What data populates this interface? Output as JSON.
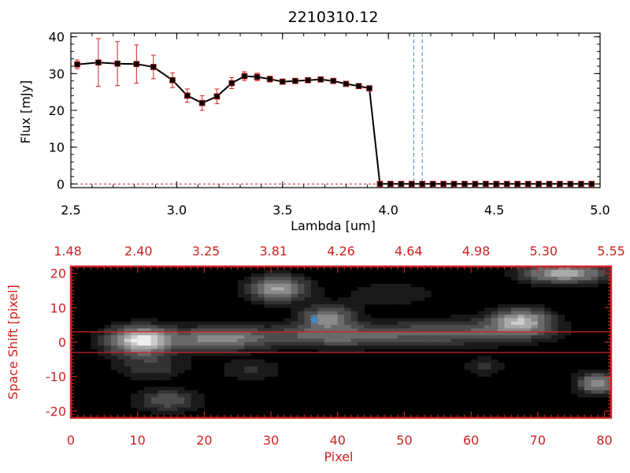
{
  "chart_data": [
    {
      "type": "line",
      "title": "2210310.12",
      "xlabel": "Lambda [um]",
      "ylabel": "Flux [mJy]",
      "xlim": [
        2.5,
        5.0
      ],
      "ylim": [
        -1,
        41
      ],
      "x_ticks": [
        "2.5",
        "3.0",
        "3.5",
        "4.0",
        "4.5",
        "5.0"
      ],
      "y_ticks": [
        "0",
        "10",
        "20",
        "30",
        "40"
      ],
      "grid": false,
      "colors": {
        "line": "#000000",
        "error_bar": "#cc2222",
        "vline": "#3a8fd0"
      },
      "vlines": [
        4.12,
        4.16
      ],
      "series": [
        {
          "x": [
            2.53,
            2.63,
            2.72,
            2.81,
            2.89,
            2.98,
            3.05,
            3.12,
            3.19,
            3.26,
            3.32,
            3.38,
            3.44,
            3.5,
            3.56,
            3.62,
            3.68,
            3.74,
            3.8,
            3.86,
            3.91,
            3.96,
            4.01,
            4.06,
            4.11,
            4.16,
            4.21,
            4.26,
            4.31,
            4.36,
            4.41,
            4.46,
            4.51,
            4.56,
            4.61,
            4.66,
            4.71,
            4.76,
            4.81,
            4.86,
            4.91,
            4.96
          ],
          "y": [
            32.5,
            33.0,
            32.7,
            32.6,
            31.8,
            28.2,
            24.0,
            22.0,
            23.8,
            27.4,
            29.3,
            29.1,
            28.5,
            27.8,
            28.0,
            28.2,
            28.4,
            28.0,
            27.2,
            26.6,
            26.0,
            0.0,
            0.0,
            0.0,
            0.0,
            0.0,
            0.0,
            0.0,
            0.0,
            0.0,
            0.0,
            0.0,
            0.0,
            0.0,
            0.0,
            0.0,
            0.0,
            0.0,
            0.0,
            0.0,
            0.0,
            0.0
          ],
          "yerr": [
            1.2,
            6.5,
            6.0,
            5.2,
            3.2,
            2.0,
            1.8,
            2.0,
            2.0,
            1.5,
            1.2,
            1.0,
            0.8,
            0.6,
            0.5,
            0.5,
            0.5,
            0.5,
            0.5,
            0.5,
            0.5,
            0,
            0,
            0,
            0,
            0,
            0,
            0,
            0,
            0,
            0,
            0,
            0,
            0,
            0,
            0,
            0,
            0,
            0,
            0,
            0,
            0
          ]
        }
      ]
    },
    {
      "type": "heatmap",
      "xlabel": "Pixel",
      "ylabel": "Space Shift [pixel]",
      "xlim": [
        0,
        81
      ],
      "ylim": [
        -22,
        22
      ],
      "x_ticks": [
        "0",
        "10",
        "20",
        "30",
        "40",
        "50",
        "60",
        "70",
        "80"
      ],
      "y_ticks": [
        "-20",
        "-10",
        "0",
        "10",
        "20"
      ],
      "top_ticks": [
        "1.48",
        "2.40",
        "3.25",
        "3.81",
        "4.26",
        "4.64",
        "4.98",
        "5.30",
        "5.55"
      ],
      "colormap": "grayscale",
      "colors": {
        "frame": "#cc2222",
        "marker": "#3a8fd0"
      },
      "aperture_lines": [
        3,
        -3
      ],
      "marker": {
        "x": 36.5,
        "y": 6.5
      },
      "sources": [
        {
          "x": 10.5,
          "y": 0.5,
          "sx": 3.2,
          "sy": 2.6,
          "a": 1.0
        },
        {
          "x": 22.0,
          "y": 1.0,
          "sx": 4.5,
          "sy": 2.2,
          "a": 0.55
        },
        {
          "x": 40.0,
          "y": 1.8,
          "sx": 9.0,
          "sy": 2.2,
          "a": 0.42
        },
        {
          "x": 60.0,
          "y": 3.0,
          "sx": 8.0,
          "sy": 2.4,
          "a": 0.33
        },
        {
          "x": 31.0,
          "y": 15.5,
          "sx": 2.8,
          "sy": 2.4,
          "a": 0.7
        },
        {
          "x": 38.5,
          "y": 7.0,
          "sx": 2.5,
          "sy": 2.2,
          "a": 0.6
        },
        {
          "x": 67.5,
          "y": 6.0,
          "sx": 2.8,
          "sy": 2.4,
          "a": 0.75
        },
        {
          "x": 74.0,
          "y": 20.0,
          "sx": 4.0,
          "sy": 1.8,
          "a": 0.75
        },
        {
          "x": 79.0,
          "y": -12.0,
          "sx": 2.0,
          "sy": 2.0,
          "a": 0.65
        },
        {
          "x": 14.5,
          "y": -17.0,
          "sx": 3.0,
          "sy": 2.2,
          "a": 0.32
        },
        {
          "x": 12.0,
          "y": -7.0,
          "sx": 3.5,
          "sy": 2.5,
          "a": 0.22
        },
        {
          "x": 27.0,
          "y": -8.0,
          "sx": 3.0,
          "sy": 2.2,
          "a": 0.15
        },
        {
          "x": 62.0,
          "y": -7.0,
          "sx": 2.0,
          "sy": 2.0,
          "a": 0.15
        },
        {
          "x": 48.0,
          "y": 14.0,
          "sx": 6.0,
          "sy": 3.0,
          "a": 0.1
        }
      ]
    }
  ]
}
